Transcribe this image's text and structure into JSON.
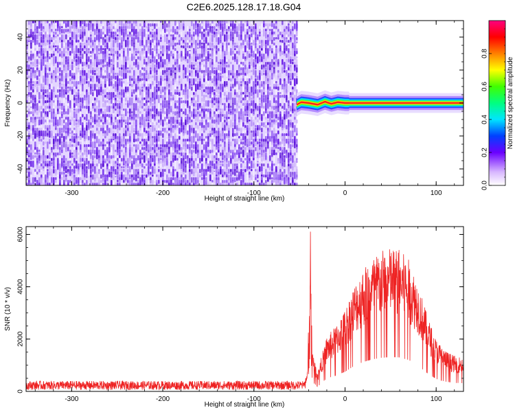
{
  "title": "C2E6.2025.128.17.18.G04",
  "colors": {
    "snr_line": "#ee2222",
    "spectrogram_noise": "#7a2be8",
    "axis": "#000000"
  },
  "chart_data": [
    {
      "type": "heatmap",
      "xlabel": "Height of straight line (km)",
      "ylabel": "Frequency (Hz)",
      "xlim": [
        -350,
        130
      ],
      "ylim": [
        -50,
        50
      ],
      "xticks": [
        -300,
        -200,
        -100,
        0,
        100
      ],
      "yticks": [
        -40,
        -20,
        0,
        20,
        40
      ],
      "noise_region": {
        "x_range": [
          -350,
          -53
        ],
        "y_range": [
          -50,
          50
        ],
        "amplitude_range": [
          0.05,
          0.2
        ]
      },
      "blank_region": {
        "x_range": [
          -53,
          130
        ]
      },
      "signal_line": {
        "x_range": [
          -53,
          130
        ],
        "frequency": [
          {
            "x": -53,
            "y": -1
          },
          {
            "x": -48,
            "y": 0.5
          },
          {
            "x": -40,
            "y": 0
          },
          {
            "x": -30,
            "y": -1
          },
          {
            "x": -22,
            "y": 0.8
          },
          {
            "x": -15,
            "y": -0.5
          },
          {
            "x": -8,
            "y": 0.5
          },
          {
            "x": 0,
            "y": 0
          },
          {
            "x": 130,
            "y": 0
          }
        ],
        "amplitude": 0.9
      },
      "colorbar": {
        "label": "Normalized spectral amplitude",
        "range": [
          0,
          1
        ],
        "ticks": [
          0.0,
          0.2,
          0.4,
          0.6,
          0.8
        ]
      }
    },
    {
      "type": "line",
      "xlabel": "Height of straight line (km)",
      "ylabel": "SNR (10 * v/v)",
      "xlim": [
        -350,
        130
      ],
      "ylim": [
        0,
        6300
      ],
      "xticks": [
        -300,
        -200,
        -100,
        0,
        100
      ],
      "yticks": [
        0,
        2000,
        4000,
        6000
      ],
      "series": [
        {
          "envelope": [
            {
              "x": -350,
              "y": 320
            },
            {
              "x": -45,
              "y": 320
            },
            {
              "x": -41,
              "y": 800
            },
            {
              "x": -38,
              "y": 6300
            },
            {
              "x": -36,
              "y": 1500
            },
            {
              "x": -30,
              "y": 700
            },
            {
              "x": -25,
              "y": 1400
            },
            {
              "x": -20,
              "y": 2000
            },
            {
              "x": -10,
              "y": 2400
            },
            {
              "x": 0,
              "y": 3000
            },
            {
              "x": 10,
              "y": 3900
            },
            {
              "x": 20,
              "y": 4500
            },
            {
              "x": 30,
              "y": 4900
            },
            {
              "x": 40,
              "y": 5150
            },
            {
              "x": 50,
              "y": 5250
            },
            {
              "x": 60,
              "y": 5200
            },
            {
              "x": 70,
              "y": 4800
            },
            {
              "x": 80,
              "y": 4000
            },
            {
              "x": 90,
              "y": 2800
            },
            {
              "x": 100,
              "y": 1900
            },
            {
              "x": 110,
              "y": 1500
            },
            {
              "x": 120,
              "y": 1300
            },
            {
              "x": 130,
              "y": 1250
            }
          ]
        }
      ]
    }
  ]
}
